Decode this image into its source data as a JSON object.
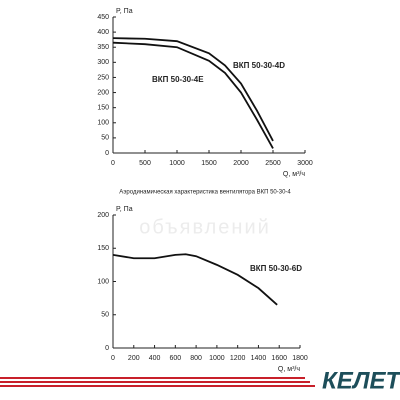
{
  "chart_data": [
    {
      "type": "line",
      "caption": "Аэродинамическая характеристика вентилятора ВКП 50-30-4",
      "ylabel": "P, Па",
      "xlabel": "Q, м³/ч",
      "xlim": [
        0,
        3000
      ],
      "xticks": [
        0,
        500,
        1000,
        1500,
        2000,
        2500,
        3000
      ],
      "ylim": [
        0,
        450
      ],
      "yticks": [
        0,
        50,
        100,
        150,
        200,
        250,
        300,
        350,
        400,
        450
      ],
      "grid": false,
      "series": [
        {
          "name": "ВКП 50-30-4D",
          "color": "#111111",
          "x": [
            0,
            500,
            1000,
            1500,
            1750,
            2000,
            2250,
            2500
          ],
          "values": [
            380,
            378,
            370,
            330,
            290,
            230,
            140,
            40
          ]
        },
        {
          "name": "ВКП 50-30-4E",
          "color": "#111111",
          "x": [
            0,
            500,
            1000,
            1500,
            1750,
            2000,
            2250,
            2500
          ],
          "values": [
            365,
            360,
            350,
            305,
            265,
            200,
            110,
            15
          ]
        }
      ]
    },
    {
      "type": "line",
      "watermark": "объявлений",
      "ylabel": "P, Па",
      "xlabel": "Q, м³/ч",
      "xlim": [
        0,
        1800
      ],
      "xticks": [
        0,
        200,
        400,
        600,
        800,
        1000,
        1200,
        1400,
        1600,
        1800
      ],
      "ylim": [
        0,
        200
      ],
      "yticks": [
        0,
        50,
        100,
        150,
        200
      ],
      "grid": false,
      "series": [
        {
          "name": "ВКП 50-30-6D",
          "color": "#111111",
          "x": [
            0,
            200,
            400,
            600,
            700,
            800,
            1000,
            1200,
            1400,
            1580
          ],
          "values": [
            140,
            135,
            135,
            140,
            141,
            138,
            125,
            110,
            90,
            65
          ]
        }
      ]
    }
  ],
  "logo": "КЕЛЕТ"
}
